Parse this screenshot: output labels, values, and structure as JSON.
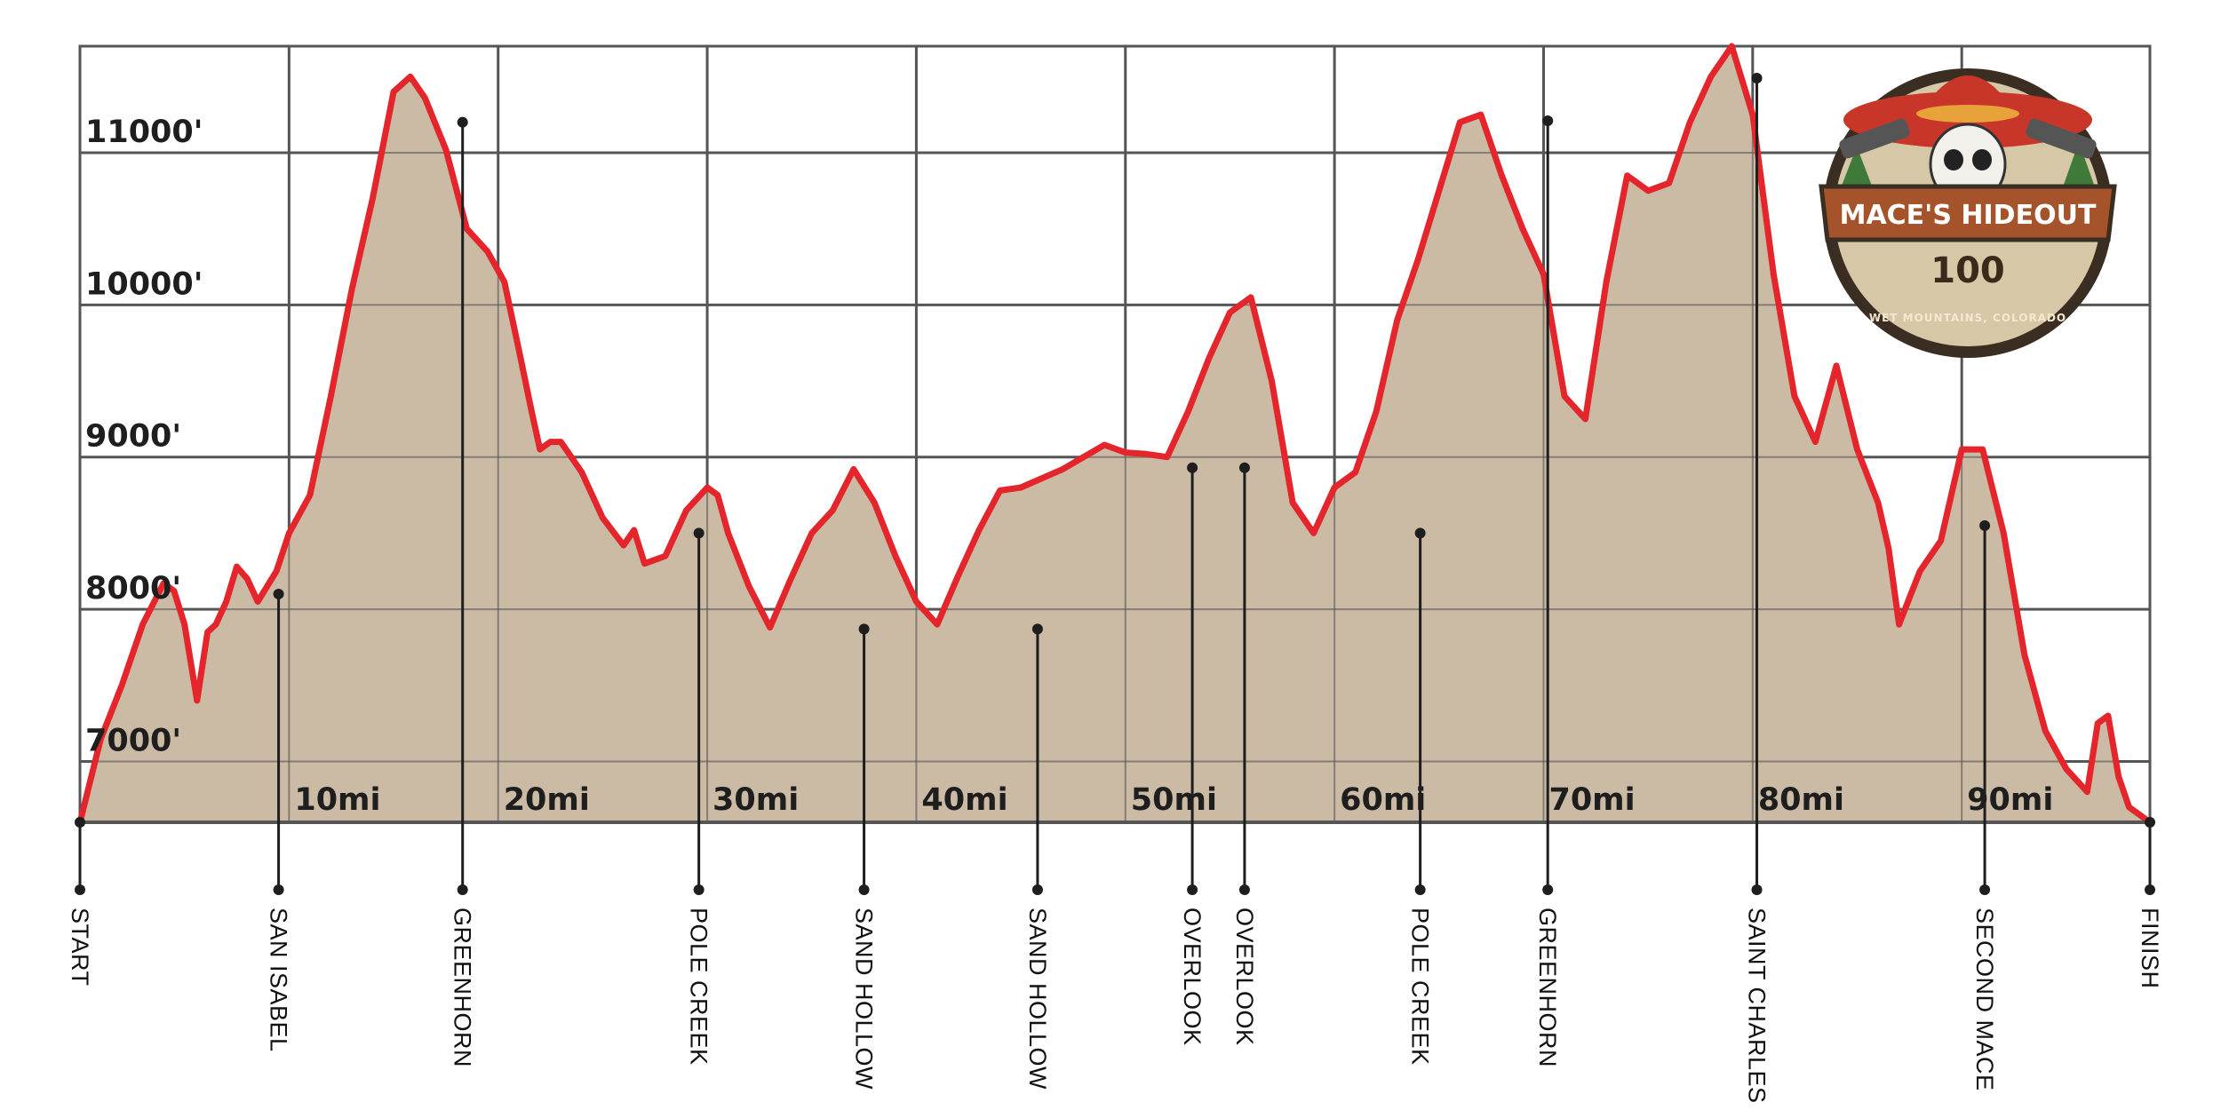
{
  "colors": {
    "fill": "#cbbaa4",
    "line": "#e4252c",
    "grid": "#555555",
    "text": "#1e1e1e"
  },
  "logo": {
    "title": "MACE'S HIDEOUT",
    "number": "100",
    "subtitle": "WET MOUNTAINS, COLORADO",
    "icon": "skull-sombrero-pistols-logo"
  },
  "chart_data": {
    "type": "area",
    "title": "",
    "xlabel": "",
    "ylabel": "",
    "xlim": [
      0,
      99
    ],
    "ylim": [
      6600,
      11700
    ],
    "grid": true,
    "x_ticks": [
      10,
      20,
      30,
      40,
      50,
      60,
      70,
      80,
      90
    ],
    "x_tick_labels": [
      "10mi",
      "20mi",
      "30mi",
      "40mi",
      "50mi",
      "60mi",
      "70mi",
      "80mi",
      "90mi"
    ],
    "y_ticks": [
      7000,
      8000,
      9000,
      10000,
      11000
    ],
    "y_tick_labels": [
      "7000'",
      "8000'",
      "9000'",
      "10000'",
      "11000'"
    ],
    "series": [
      {
        "x": [
          0,
          1,
          2,
          3,
          4,
          4.5,
          5,
          5.6,
          6.1,
          6.5,
          7,
          7.5,
          8,
          8.5,
          9.4,
          10,
          11,
          12,
          13,
          14,
          15,
          15.8,
          16.5,
          17.5,
          18.5,
          19.5,
          20.3,
          21,
          21.6,
          22,
          22.5,
          23,
          24,
          25,
          26,
          26.5,
          27,
          28,
          29,
          30,
          30.5,
          31,
          32,
          33,
          34,
          35,
          36,
          37,
          38,
          39,
          40,
          41,
          42,
          43,
          44,
          45,
          46,
          47,
          48,
          49,
          50,
          51,
          52,
          53,
          54,
          55,
          56,
          57,
          58,
          59,
          60,
          61,
          61.5,
          62,
          63,
          64,
          65,
          66,
          67,
          68,
          69,
          70,
          71,
          72,
          73,
          74,
          75,
          76,
          77,
          78,
          79,
          80,
          81,
          82,
          83,
          84,
          85,
          86,
          86.5,
          87,
          88,
          89,
          90,
          91,
          92,
          93,
          94,
          95,
          96,
          96.5,
          97,
          97.5,
          98,
          99
        ],
        "y": [
          6600,
          7150,
          7500,
          7900,
          8170,
          8120,
          7900,
          7400,
          7850,
          7900,
          8050,
          8280,
          8200,
          8050,
          8250,
          8500,
          8750,
          9400,
          10100,
          10700,
          11400,
          11500,
          11360,
          11020,
          10500,
          10350,
          10150,
          9700,
          9300,
          9050,
          9100,
          9100,
          8900,
          8600,
          8420,
          8520,
          8300,
          8350,
          8650,
          8800,
          8750,
          8500,
          8150,
          7880,
          8200,
          8500,
          8650,
          8920,
          8700,
          8350,
          8050,
          7900,
          8220,
          8520,
          8780,
          8800,
          8860,
          8920,
          9000,
          9080,
          9030,
          9020,
          9000,
          9300,
          9650,
          9950,
          10050,
          9500,
          8700,
          8500,
          8800,
          8900,
          9100,
          9300,
          9900,
          10300,
          10750,
          11200,
          11250,
          10850,
          10500,
          10200,
          9400,
          9250,
          10150,
          10850,
          10750,
          10800,
          11200,
          11500,
          11700,
          11250,
          10200,
          9400,
          9100,
          9600,
          9050,
          8700,
          8400,
          7900,
          8250,
          8450,
          9050,
          9050,
          8500,
          7700,
          7200,
          6950,
          6800,
          7250,
          7300,
          6900,
          6700,
          6600
        ]
      }
    ],
    "aid_stations": [
      {
        "name": "START",
        "mile": 0,
        "elevation": 6600
      },
      {
        "name": "SAN ISABEL",
        "mile": 9.5,
        "elevation": 8100
      },
      {
        "name": "GREENHORN",
        "mile": 18.3,
        "elevation": 11200
      },
      {
        "name": "POLE CREEK",
        "mile": 29.6,
        "elevation": 8500
      },
      {
        "name": "SAND HOLLOW",
        "mile": 37.5,
        "elevation": 7870
      },
      {
        "name": "SAND HOLLOW",
        "mile": 45.8,
        "elevation": 7870
      },
      {
        "name": "OVERLOOK",
        "mile": 53.2,
        "elevation": 8930
      },
      {
        "name": "OVERLOOK",
        "mile": 55.7,
        "elevation": 8930
      },
      {
        "name": "POLE CREEK",
        "mile": 64.1,
        "elevation": 8500
      },
      {
        "name": "GREENHORN",
        "mile": 70.2,
        "elevation": 11210
      },
      {
        "name": "SAINT CHARLES",
        "mile": 80.2,
        "elevation": 11490
      },
      {
        "name": "SECOND MACE",
        "mile": 91.1,
        "elevation": 8550
      },
      {
        "name": "FINISH",
        "mile": 99,
        "elevation": 6600
      }
    ]
  }
}
